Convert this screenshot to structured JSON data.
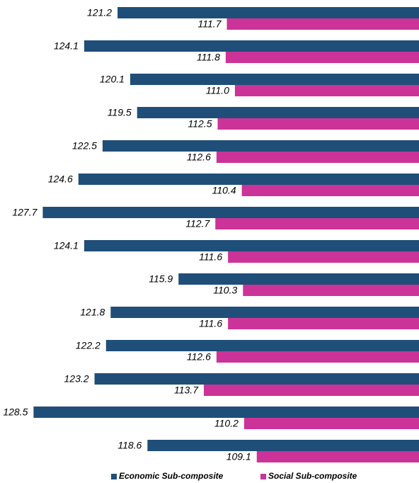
{
  "chart_data": {
    "type": "barh",
    "categories": [
      null,
      null,
      null,
      null,
      null,
      null,
      null,
      null,
      null,
      null,
      null,
      null,
      null,
      null
    ],
    "xlim": [
      95,
      130
    ],
    "x_reversed": true,
    "legend": "bottom",
    "series": [
      {
        "name": "Economic Sub-composite",
        "color": "#1f4e79",
        "values": [
          121.2,
          124.1,
          120.1,
          119.5,
          122.5,
          124.6,
          127.7,
          124.1,
          115.9,
          121.8,
          122.2,
          123.2,
          128.5,
          118.6
        ],
        "value_labels": [
          "121.2",
          "124.1",
          "120.1",
          "119.5",
          "122.5",
          "124.6",
          "127.7",
          "124.1",
          "115.9",
          "121.8",
          "122.2",
          "123.2",
          "128.5",
          "118.6"
        ]
      },
      {
        "name": "Social Sub-composite",
        "color": "#cc3399",
        "values": [
          111.7,
          111.8,
          111.0,
          112.5,
          112.6,
          110.4,
          112.7,
          111.6,
          110.3,
          111.6,
          112.6,
          113.7,
          110.2,
          109.1
        ],
        "value_labels": [
          "111.7",
          "111.8",
          "111.0",
          "112.5",
          "112.6",
          "110.4",
          "112.7",
          "111.6",
          "110.3",
          "111.6",
          "112.6",
          "113.7",
          "110.2",
          "109.1"
        ]
      }
    ]
  }
}
